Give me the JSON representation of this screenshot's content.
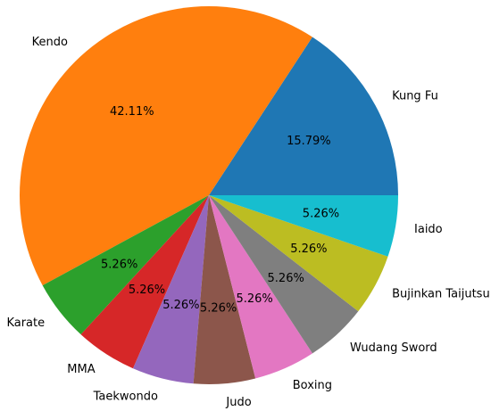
{
  "chart_data": {
    "type": "pie",
    "categories": [
      "Kung Fu",
      "Kendo",
      "Karate",
      "MMA",
      "Taekwondo",
      "Judo",
      "Boxing",
      "Wudang Sword",
      "Bujinkan Taijutsu",
      "Iaido"
    ],
    "values": [
      15.79,
      42.11,
      5.26,
      5.26,
      5.26,
      5.26,
      5.26,
      5.26,
      5.26,
      5.26
    ],
    "value_labels": [
      "15.79%",
      "42.11%",
      "5.26%",
      "5.26%",
      "5.26%",
      "5.26%",
      "5.26%",
      "5.26%",
      "5.26%",
      "5.26%"
    ],
    "colors": [
      "#1f77b4",
      "#ff7f0e",
      "#2ca02c",
      "#d62728",
      "#9467bd",
      "#8c564b",
      "#e377c2",
      "#7f7f7f",
      "#bcbd22",
      "#17becf"
    ]
  }
}
